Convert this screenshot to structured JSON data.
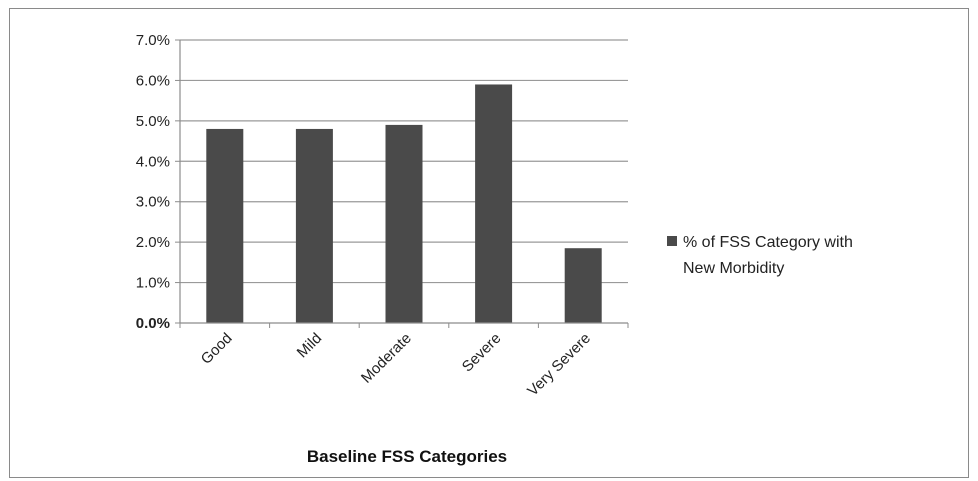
{
  "chart_data": {
    "type": "bar",
    "title": "",
    "xlabel": "Baseline FSS Categories",
    "ylabel": "",
    "categories": [
      "Good",
      "Mild",
      "Moderate",
      "Severe",
      "Very Severe"
    ],
    "series": [
      {
        "name": "% of FSS Category with New Morbidity",
        "legend_lines": [
          "% of FSS Category with",
          "New Morbidity"
        ],
        "values": [
          4.8,
          4.8,
          4.9,
          5.9,
          1.85
        ]
      }
    ],
    "ylim": [
      0,
      7
    ],
    "yticks": [
      "0.0%",
      "1.0%",
      "2.0%",
      "3.0%",
      "4.0%",
      "5.0%",
      "6.0%",
      "7.0%"
    ],
    "grid": true,
    "legend_position": "right",
    "colors": {
      "bar": "#4a4a4a",
      "grid": "#9a9a9a",
      "axis": "#8c8c8c",
      "frame": "#8a8a8a"
    }
  }
}
